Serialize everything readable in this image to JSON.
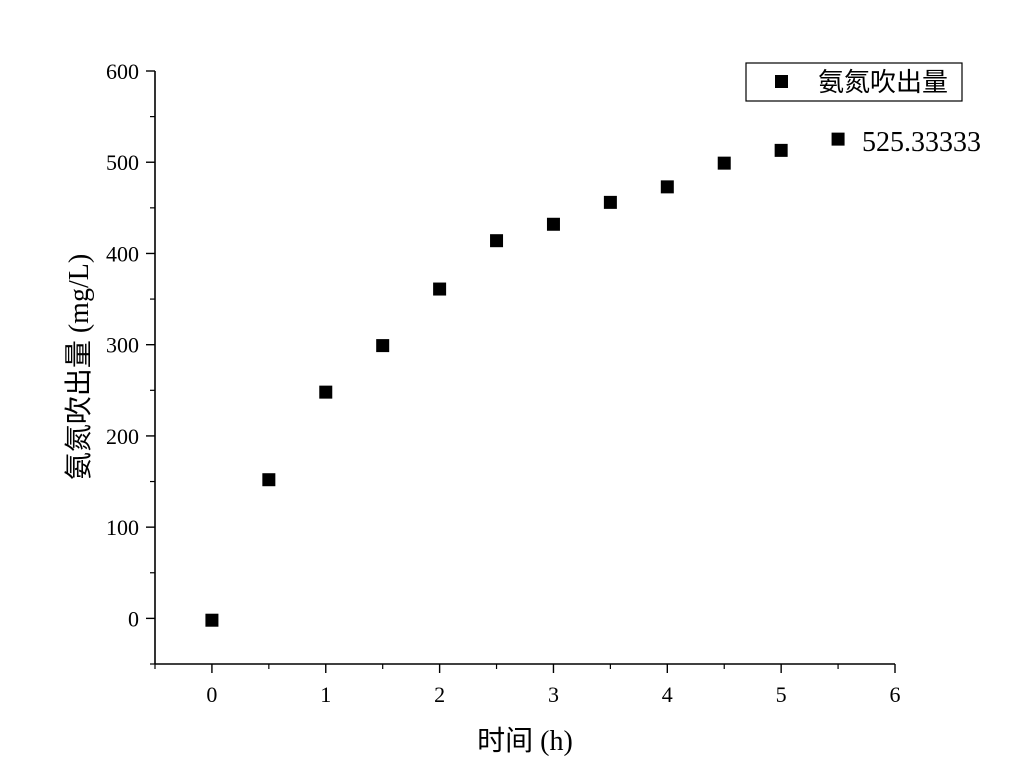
{
  "chart_data": {
    "type": "scatter",
    "title": "",
    "xlabel": "时间 (h)",
    "ylabel": "氨氮吹出量 (mg/L)",
    "xlim": [
      -0.5,
      6
    ],
    "ylim": [
      -50,
      600
    ],
    "x_ticks": [
      0,
      1,
      2,
      3,
      4,
      5,
      6
    ],
    "y_ticks": [
      0,
      100,
      200,
      300,
      400,
      500,
      600
    ],
    "grid": false,
    "legend_position": "top-right",
    "series": [
      {
        "name": "氨氮吹出量",
        "marker": "square",
        "color": "#000000",
        "x": [
          0,
          0.5,
          1,
          1.5,
          2,
          2.5,
          3,
          3.5,
          4,
          4.5,
          5,
          5.5
        ],
        "y": [
          -2,
          152,
          248,
          299,
          361,
          414,
          432,
          456,
          473,
          499,
          513,
          525.33333
        ]
      }
    ],
    "annotations": [
      {
        "text": "525.33333",
        "x": 5.5,
        "y": 525.33333
      }
    ]
  }
}
